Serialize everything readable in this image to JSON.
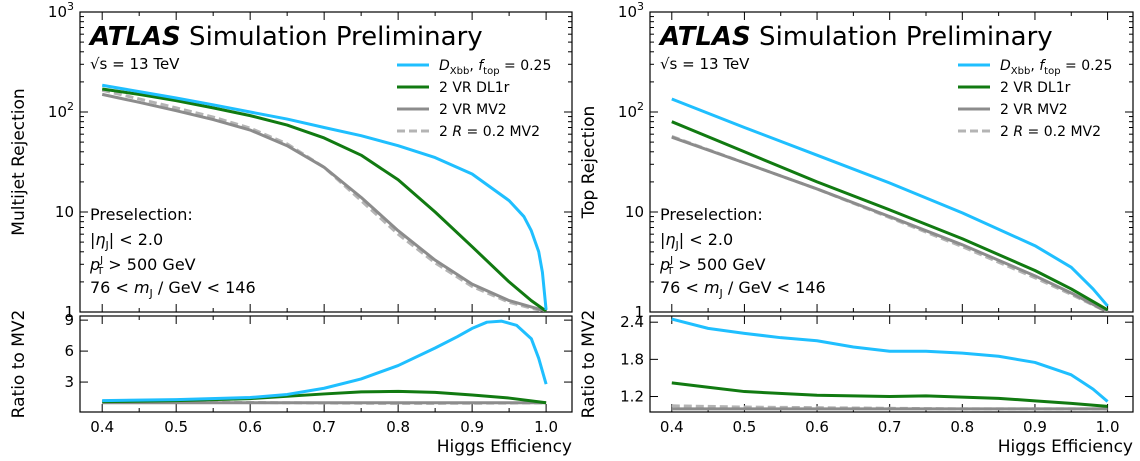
{
  "chart_data": [
    {
      "type": "line",
      "title": "ATLAS Simulation Preliminary",
      "title_parts": {
        "experiment": "ATLAS",
        "status": "Simulation Preliminary"
      },
      "energy_label": "√s = 13 TeV",
      "annotations": [
        "Preselection:",
        "|ηJ| < 2.0",
        "pJT > 500 GeV",
        "76 < mJ / GeV < 146"
      ],
      "xlabel": "Higgs Efficiency",
      "ylabel": "Multijet Rejection",
      "ratio_ylabel": "Ratio to MV2",
      "xlim": [
        0.37,
        1.035
      ],
      "ylim": [
        1,
        1000
      ],
      "yscale": "log",
      "ratio_ylim": [
        0.1,
        9.4
      ],
      "x_ticks": [
        "0.4",
        "0.5",
        "0.6",
        "0.7",
        "0.8",
        "0.9",
        "1.0"
      ],
      "y_ticks": [
        "1",
        "10",
        "10²",
        "10³"
      ],
      "ratio_ticks": [
        "3",
        "6",
        "9"
      ],
      "legend_position": "top-right",
      "legend": [
        "D_Xbb, f_top = 0.25",
        "2 VR DL1r",
        "2 VR MV2",
        "2 R = 0.2 MV2"
      ],
      "series": [
        {
          "name": "D_Xbb, f_top = 0.25",
          "color": "#1fbfff",
          "dash": "solid",
          "x": [
            0.4,
            0.45,
            0.5,
            0.55,
            0.6,
            0.65,
            0.7,
            0.75,
            0.8,
            0.85,
            0.9,
            0.95,
            0.97,
            0.98,
            0.99,
            0.995,
            1.0
          ],
          "y": [
            185,
            160,
            138,
            118,
            100,
            85,
            70,
            58,
            46,
            35,
            24,
            13,
            9,
            6.5,
            4,
            2.5,
            1.05
          ]
        },
        {
          "name": "2 VR DL1r",
          "color": "#117a11",
          "dash": "solid",
          "x": [
            0.4,
            0.45,
            0.5,
            0.55,
            0.6,
            0.65,
            0.7,
            0.75,
            0.8,
            0.85,
            0.9,
            0.95,
            0.98,
            1.0
          ],
          "y": [
            170,
            150,
            130,
            110,
            92,
            74,
            55,
            37,
            21,
            10,
            4.5,
            2,
            1.3,
            1.02
          ]
        },
        {
          "name": "2 VR MV2",
          "color": "#8c8c8c",
          "dash": "solid",
          "x": [
            0.4,
            0.45,
            0.5,
            0.55,
            0.6,
            0.65,
            0.7,
            0.75,
            0.8,
            0.85,
            0.9,
            0.95,
            1.0
          ],
          "y": [
            150,
            125,
            103,
            84,
            66,
            46,
            28,
            14,
            6.5,
            3.3,
            1.9,
            1.3,
            1.02
          ]
        },
        {
          "name": "2 R = 0.2 MV2",
          "color": "#b4b4b4",
          "dash": "dashed",
          "x": [
            0.4,
            0.45,
            0.5,
            0.55,
            0.6,
            0.65,
            0.7,
            0.75,
            0.8,
            0.85,
            0.9,
            0.95,
            1.0
          ],
          "y": [
            165,
            135,
            110,
            89,
            69,
            48,
            28,
            13,
            6,
            3.1,
            1.8,
            1.25,
            1.0
          ]
        }
      ],
      "ratio_series": [
        {
          "name": "D_Xbb, f_top = 0.25",
          "color": "#1fbfff",
          "dash": "solid",
          "x": [
            0.4,
            0.5,
            0.6,
            0.65,
            0.7,
            0.75,
            0.8,
            0.85,
            0.88,
            0.9,
            0.92,
            0.94,
            0.96,
            0.98,
            0.99,
            1.0
          ],
          "y": [
            1.2,
            1.3,
            1.5,
            1.8,
            2.4,
            3.3,
            4.6,
            6.3,
            7.4,
            8.2,
            8.8,
            8.9,
            8.5,
            7.2,
            5.3,
            2.8
          ]
        },
        {
          "name": "2 VR DL1r",
          "color": "#117a11",
          "dash": "solid",
          "x": [
            0.4,
            0.5,
            0.6,
            0.7,
            0.75,
            0.8,
            0.85,
            0.9,
            0.95,
            1.0
          ],
          "y": [
            1.1,
            1.2,
            1.4,
            1.85,
            2.05,
            2.1,
            2.0,
            1.75,
            1.45,
            1.0
          ]
        },
        {
          "name": "2 VR MV2",
          "color": "#8c8c8c",
          "dash": "solid",
          "x": [
            0.4,
            1.0
          ],
          "y": [
            1.0,
            1.0
          ]
        },
        {
          "name": "2 R = 0.2 MV2",
          "color": "#b4b4b4",
          "dash": "dashed",
          "x": [
            0.4,
            0.5,
            0.6,
            0.7,
            0.8,
            0.9,
            1.0
          ],
          "y": [
            1.1,
            1.05,
            1.02,
            0.97,
            0.93,
            0.95,
            0.98
          ]
        }
      ]
    },
    {
      "type": "line",
      "title": "ATLAS Simulation Preliminary",
      "title_parts": {
        "experiment": "ATLAS",
        "status": "Simulation Preliminary"
      },
      "energy_label": "√s = 13 TeV",
      "annotations": [
        "Preselection:",
        "|ηJ| < 2.0",
        "pJT > 500 GeV",
        "76 < mJ / GeV < 146"
      ],
      "xlabel": "Higgs Efficiency",
      "ylabel": "Top Rejection",
      "ratio_ylabel": "Ratio to MV2",
      "xlim": [
        0.37,
        1.035
      ],
      "ylim": [
        1,
        1000
      ],
      "yscale": "log",
      "ratio_ylim": [
        0.95,
        2.5
      ],
      "x_ticks": [
        "0.4",
        "0.5",
        "0.6",
        "0.7",
        "0.8",
        "0.9",
        "1.0"
      ],
      "y_ticks": [
        "1",
        "10",
        "10²",
        "10³"
      ],
      "ratio_ticks": [
        "1.2",
        "1.8",
        "2.4"
      ],
      "legend_position": "top-right",
      "legend": [
        "D_Xbb, f_top = 0.25",
        "2 VR DL1r",
        "2 VR MV2",
        "2 R = 0.2 MV2"
      ],
      "series": [
        {
          "name": "D_Xbb, f_top = 0.25",
          "color": "#1fbfff",
          "dash": "solid",
          "x": [
            0.4,
            0.5,
            0.6,
            0.7,
            0.8,
            0.9,
            0.95,
            0.98,
            1.0
          ],
          "y": [
            135,
            70,
            37,
            19.5,
            9.8,
            4.6,
            2.8,
            1.7,
            1.15
          ]
        },
        {
          "name": "2 VR DL1r",
          "color": "#117a11",
          "dash": "solid",
          "x": [
            0.4,
            0.5,
            0.6,
            0.7,
            0.8,
            0.9,
            0.95,
            1.0
          ],
          "y": [
            80,
            40,
            20,
            10.5,
            5.4,
            2.6,
            1.7,
            1.05
          ]
        },
        {
          "name": "2 VR MV2",
          "color": "#8c8c8c",
          "dash": "solid",
          "x": [
            0.4,
            0.5,
            0.6,
            0.7,
            0.8,
            0.9,
            0.95,
            1.0
          ],
          "y": [
            56,
            31,
            17,
            9,
            4.7,
            2.3,
            1.55,
            1.0
          ]
        },
        {
          "name": "2 R = 0.2 MV2",
          "color": "#b4b4b4",
          "dash": "dashed",
          "x": [
            0.4,
            0.5,
            0.6,
            0.7,
            0.8,
            0.9,
            0.95,
            1.0
          ],
          "y": [
            57,
            31,
            17,
            8.8,
            4.5,
            2.2,
            1.5,
            1.0
          ]
        }
      ],
      "ratio_series": [
        {
          "name": "D_Xbb, f_top = 0.25",
          "color": "#1fbfff",
          "dash": "solid",
          "x": [
            0.4,
            0.45,
            0.5,
            0.55,
            0.6,
            0.65,
            0.7,
            0.75,
            0.8,
            0.85,
            0.9,
            0.95,
            0.98,
            1.0
          ],
          "y": [
            2.45,
            2.3,
            2.22,
            2.15,
            2.1,
            2.0,
            1.93,
            1.93,
            1.9,
            1.85,
            1.75,
            1.55,
            1.32,
            1.12
          ]
        },
        {
          "name": "2 VR DL1r",
          "color": "#117a11",
          "dash": "solid",
          "x": [
            0.4,
            0.45,
            0.5,
            0.6,
            0.7,
            0.75,
            0.8,
            0.85,
            0.9,
            0.95,
            1.0
          ],
          "y": [
            1.42,
            1.35,
            1.28,
            1.22,
            1.2,
            1.21,
            1.19,
            1.17,
            1.13,
            1.09,
            1.04
          ]
        },
        {
          "name": "2 VR MV2",
          "color": "#8c8c8c",
          "dash": "solid",
          "x": [
            0.4,
            1.0
          ],
          "y": [
            1.0,
            1.0
          ]
        },
        {
          "name": "2 R = 0.2 MV2",
          "color": "#b4b4b4",
          "dash": "dashed",
          "x": [
            0.4,
            0.5,
            0.6,
            0.7,
            0.8,
            0.9,
            1.0
          ],
          "y": [
            1.05,
            1.03,
            1.02,
            1.01,
            1.0,
            1.0,
            1.0
          ]
        }
      ]
    }
  ]
}
